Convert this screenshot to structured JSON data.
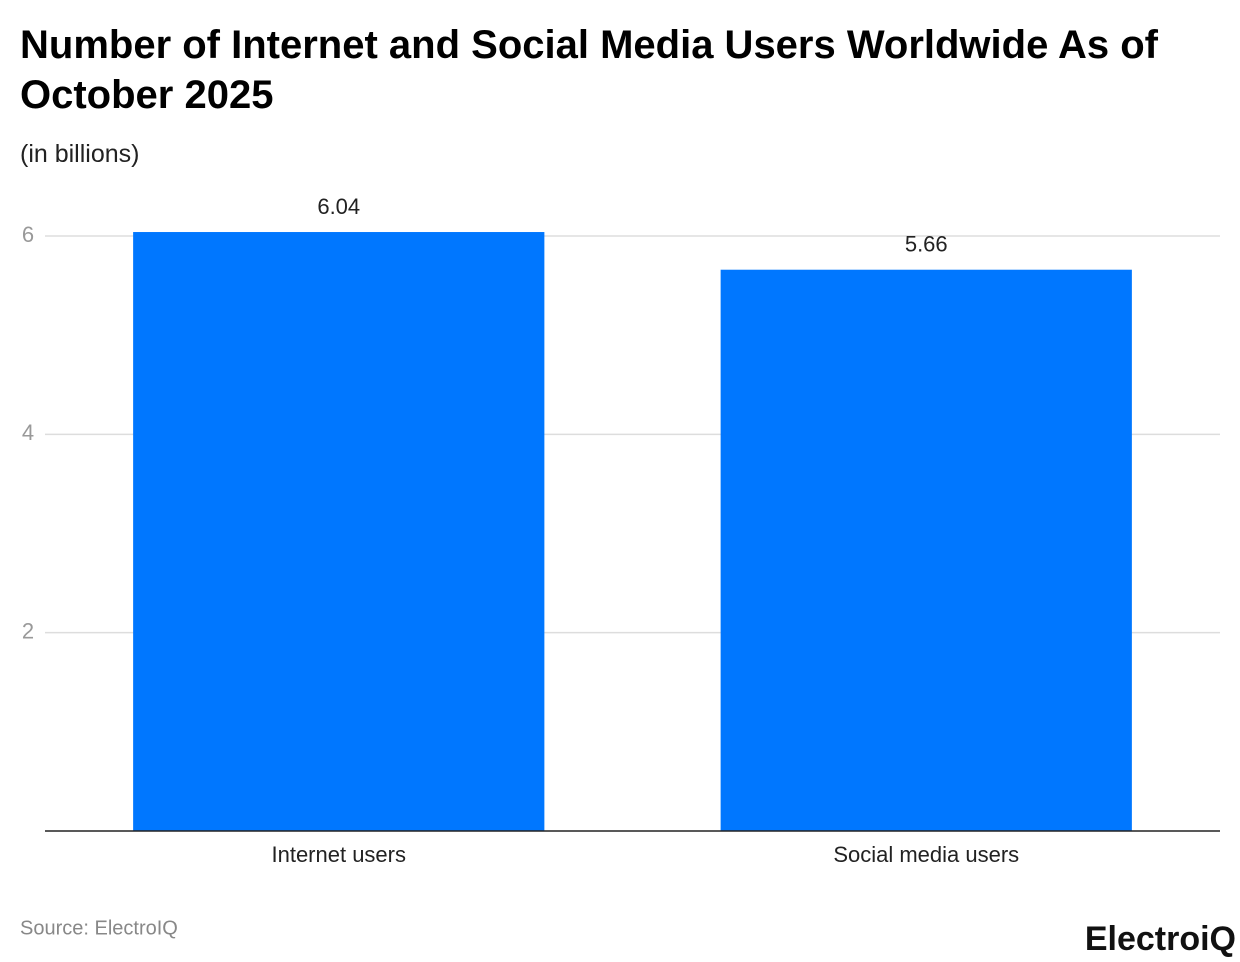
{
  "chart_data": {
    "type": "bar",
    "title": "Number of Internet and Social Media Users Worldwide As of October 2025",
    "subtitle": "(in billions)",
    "categories": [
      "Internet users",
      "Social media users"
    ],
    "values": [
      6.04,
      5.66
    ],
    "color": "#0077ff",
    "ylim": [
      0,
      6
    ],
    "yticks": [
      2,
      4,
      6
    ],
    "grid": true,
    "source": "Source: ElectroIQ",
    "logo": "ElectroiQ"
  }
}
